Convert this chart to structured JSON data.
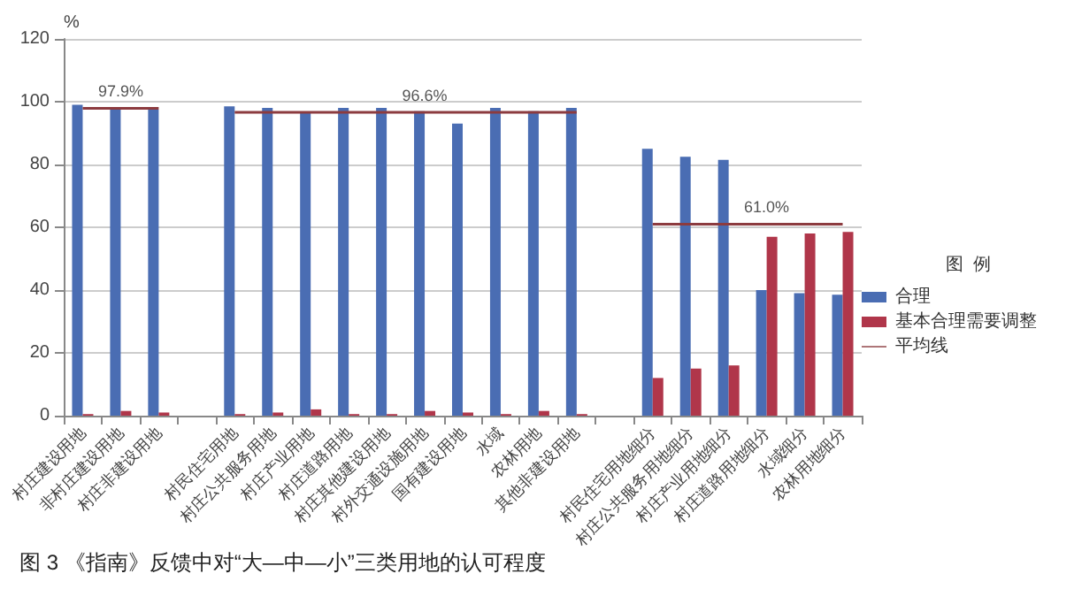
{
  "chart_data": {
    "type": "bar",
    "annotations": [
      "图 3 《指南》反馈中对“大—中—小”三类用地的认可程度"
    ],
    "ylabel": "%",
    "legend_title": "图  例",
    "legend": "right",
    "grid": "y",
    "categories": [
      "村庄建设用地",
      "非村庄建设用地",
      "村庄非建设用地",
      null,
      "村民住宅用地",
      "村庄公共服务用地",
      "村庄产业用地",
      "村庄道路用地",
      "村庄其他建设用地",
      "村外交通设施用地",
      "国有建设用地",
      "水域",
      "农林用地",
      "其他非建设用地",
      null,
      "村民住宅用地细分",
      "村庄公共服务用地细分",
      "村庄产业用地细分",
      "村庄道路用地细分",
      "水域细分",
      "农林用地细分"
    ],
    "ylim": [
      0,
      120
    ],
    "yticks": [
      0,
      20,
      40,
      60,
      80,
      100,
      120
    ],
    "series": [
      {
        "name": "合理",
        "color": "#4a6db3",
        "values": [
          99,
          97.5,
          97.5,
          null,
          98.5,
          98,
          96.5,
          98,
          98,
          97,
          93,
          98,
          97,
          98,
          null,
          85,
          82.5,
          81.5,
          40,
          39,
          38.5
        ]
      },
      {
        "name": "基本合理需要调整",
        "color": "#b0364a",
        "values": [
          0.5,
          1.5,
          1,
          null,
          0.5,
          1,
          2,
          0.5,
          0.5,
          1.5,
          1,
          0.5,
          1.5,
          0.5,
          null,
          12,
          15,
          16,
          57,
          58,
          58.5
        ]
      },
      {
        "name": "平均线",
        "type": "line",
        "color": "#8c3b3f",
        "marker": "none",
        "values": [
          97.9,
          97.9,
          97.9,
          null,
          96.6,
          96.6,
          96.6,
          96.6,
          96.6,
          96.6,
          96.6,
          96.6,
          96.6,
          96.6,
          null,
          61.0,
          61.0,
          61.0,
          61.0,
          61.0,
          61.0
        ],
        "value_labels": [
          null,
          "97.9%",
          null,
          null,
          null,
          null,
          null,
          null,
          null,
          "96.6%",
          null,
          null,
          null,
          null,
          null,
          null,
          null,
          null,
          "61.0%",
          null,
          null
        ]
      }
    ]
  }
}
